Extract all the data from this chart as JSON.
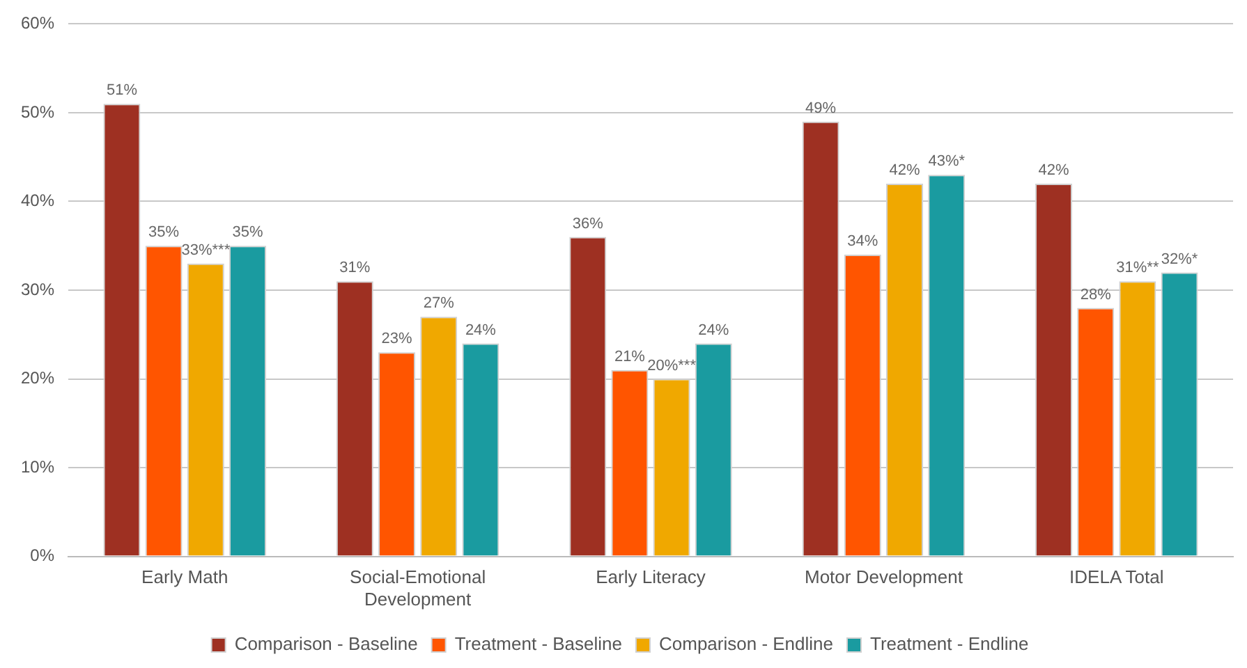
{
  "chart_data": {
    "type": "bar",
    "categories": [
      "Early Math",
      "Social-Emotional Development",
      "Early Literacy",
      "Motor Development",
      "IDELA Total"
    ],
    "series": [
      {
        "name": "Comparison - Baseline",
        "color": "#9e3022",
        "values": [
          51,
          31,
          36,
          49,
          42
        ],
        "value_labels": [
          "51%",
          "31%",
          "36%",
          "49%",
          "42%"
        ]
      },
      {
        "name": "Treatment - Baseline",
        "color": "#ff5500",
        "values": [
          35,
          23,
          21,
          34,
          28
        ],
        "value_labels": [
          "35%",
          "23%",
          "21%",
          "34%",
          "28%"
        ]
      },
      {
        "name": "Comparison - Endline",
        "color": "#f0a800",
        "values": [
          33,
          27,
          20,
          42,
          31
        ],
        "value_labels": [
          "33%***",
          "27%",
          "20%***",
          "42%",
          "31%**"
        ]
      },
      {
        "name": "Treatment - Endline",
        "color": "#1a9ba0",
        "values": [
          35,
          24,
          24,
          43,
          32
        ],
        "value_labels": [
          "35%",
          "24%",
          "24%",
          "43%*",
          "32%*"
        ]
      }
    ],
    "ylim": [
      0,
      60
    ],
    "yticks": [
      {
        "value": 0,
        "label": "0%"
      },
      {
        "value": 10,
        "label": "10%"
      },
      {
        "value": 20,
        "label": "20%"
      },
      {
        "value": 30,
        "label": "30%"
      },
      {
        "value": 40,
        "label": "40%"
      },
      {
        "value": 50,
        "label": "50%"
      },
      {
        "value": 60,
        "label": "60%"
      }
    ],
    "grid": "y",
    "legend": "bottom"
  }
}
